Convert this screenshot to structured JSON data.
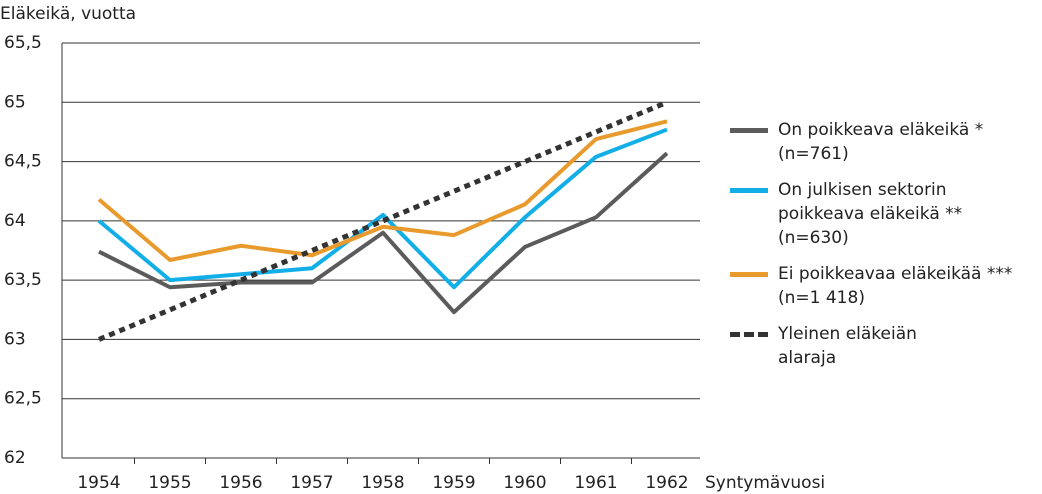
{
  "chart_data": {
    "type": "line",
    "y_label": "Eläkeikä, vuotta",
    "x_label": "Syntymävuosi",
    "categories": [
      "1954",
      "1955",
      "1956",
      "1957",
      "1958",
      "1959",
      "1960",
      "1961",
      "1962"
    ],
    "series": [
      {
        "name": "On poikkeava eläkeikä *\n(n=761)",
        "color": "#5b5b5b",
        "values": [
          63.74,
          63.44,
          63.48,
          63.48,
          63.9,
          63.23,
          63.78,
          64.03,
          64.57
        ]
      },
      {
        "name": "On julkisen sektorin\npoikkeava eläkeikä **\n(n=630)",
        "color": "#12aee8",
        "values": [
          64.0,
          63.5,
          63.55,
          63.6,
          64.05,
          63.44,
          64.03,
          64.54,
          64.77
        ]
      },
      {
        "name": "Ei poikkeavaa eläkeikää ***\n(n=1 418)",
        "color": "#e99a2c",
        "values": [
          64.18,
          63.67,
          63.79,
          63.71,
          63.95,
          63.88,
          64.14,
          64.69,
          64.84
        ]
      },
      {
        "name": "Yleinen eläkeiän\nalaraja",
        "color": "#333333",
        "dashed": true,
        "values": [
          63,
          63.25,
          63.5,
          63.75,
          64,
          64.25,
          64.5,
          64.75,
          65
        ]
      }
    ],
    "ylim": [
      62,
      65.5
    ],
    "yticks": [
      62,
      {
        "value": 62.5,
        "label": "62,5"
      },
      63,
      {
        "value": 63.5,
        "label": "63,5"
      },
      64,
      {
        "value": 64.5,
        "label": "64,5"
      },
      65,
      {
        "value": 65.5,
        "label": "65,5"
      }
    ],
    "grid": true,
    "legend": "right"
  }
}
